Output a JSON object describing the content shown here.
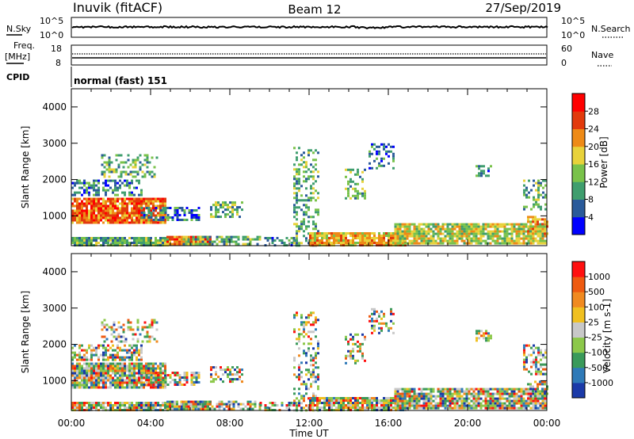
{
  "header": {
    "radar": "Inuvik (fitACF)",
    "beam": "Beam 12",
    "date": "27/Sep/2019"
  },
  "noise_panel": {
    "left_label": "N.Sky",
    "right_label": "N.Search",
    "left_top": "10^5",
    "left_bottom": "10^0",
    "right_top": "10^5",
    "right_bottom": "10^0"
  },
  "freq_panel": {
    "left_label_1": "Freq.",
    "left_label_2": "[MHz]",
    "left_top": "18",
    "left_bottom": "8",
    "right_label": "Nave",
    "right_top": "60",
    "right_bottom": "0"
  },
  "cpid_panel": {
    "label": "CPID",
    "mode": "normal (fast) 151"
  },
  "chart_data": [
    {
      "type": "heatmap",
      "name": "power",
      "ylabel": "Slant Range [km]",
      "xlabel": "",
      "ylim": [
        180,
        4500
      ],
      "yticks": [
        "1000",
        "2000",
        "3000",
        "4000"
      ],
      "x_ticks": [
        "00:00",
        "04:00",
        "08:00",
        "12:00",
        "16:00",
        "20:00",
        "00:00"
      ],
      "colorbar": {
        "label": "Power [dB]",
        "ticks": [
          "4",
          "8",
          "12",
          "16",
          "20",
          "24",
          "28"
        ],
        "colors": [
          "#0000ff",
          "#2a5a9a",
          "#3f9e6e",
          "#79c24a",
          "#e8d23a",
          "#ee8a16",
          "#e23a0c",
          "#ff0000"
        ]
      }
    },
    {
      "type": "heatmap",
      "name": "velocity",
      "ylabel": "Slant Range [km]",
      "xlabel": "Time UT",
      "ylim": [
        180,
        4500
      ],
      "yticks": [
        "1000",
        "2000",
        "3000",
        "4000"
      ],
      "x_ticks": [
        "00:00",
        "04:00",
        "08:00",
        "12:00",
        "16:00",
        "20:00",
        "00:00"
      ],
      "colorbar": {
        "label": "Velocity [m s-1]",
        "ticks": [
          "1000",
          "500",
          "100",
          "25",
          "-25",
          "-100",
          "-500",
          "-1000"
        ],
        "colors": [
          "#1b3aa8",
          "#2f7ab8",
          "#3a9a5a",
          "#8cc84a",
          "#c8c8c8",
          "#f0c020",
          "#f08a20",
          "#ee5a10",
          "#ff1010"
        ]
      }
    }
  ]
}
